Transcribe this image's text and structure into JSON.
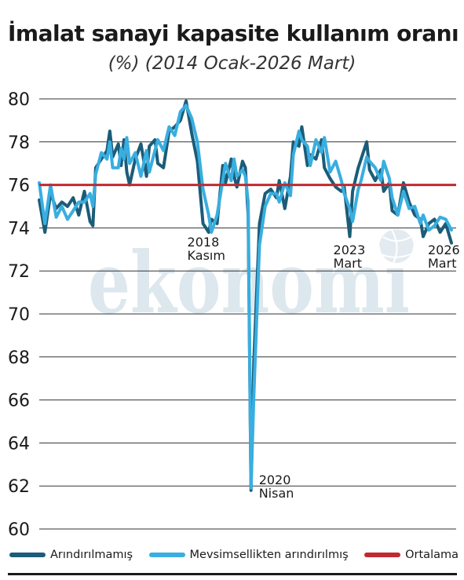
{
  "chart_data": {
    "type": "line",
    "title": "İmalat sanayi kapasite kullanım oranı",
    "subtitle": "(%) (2014 Ocak-2026 Mart)",
    "x_range": [
      "2014-01",
      "2026-03"
    ],
    "ylim": [
      60,
      80
    ],
    "yticks": [
      60,
      62,
      64,
      66,
      68,
      70,
      72,
      74,
      76,
      78,
      80
    ],
    "grid": true,
    "legend_position": "bottom",
    "reference_line": {
      "name": "Ortalama",
      "value": 76.0
    },
    "annotations": [
      {
        "label": [
          "2018",
          "Kasım"
        ],
        "date": "2018-11"
      },
      {
        "label": [
          "2020",
          "Nisan"
        ],
        "date": "2020-04"
      },
      {
        "label": [
          "2023",
          "Mart"
        ],
        "date": "2023-03"
      },
      {
        "label": [
          "2026",
          "Mart"
        ],
        "date": "2026-03"
      }
    ],
    "series": [
      {
        "name": "Arındırılmamış",
        "color": "#1b5c78",
        "points": [
          [
            "2014-01",
            75.3
          ],
          [
            "2014-03",
            73.8
          ],
          [
            "2014-05",
            75.6
          ],
          [
            "2014-07",
            74.9
          ],
          [
            "2014-09",
            75.2
          ],
          [
            "2014-11",
            75.0
          ],
          [
            "2015-01",
            75.4
          ],
          [
            "2015-03",
            74.6
          ],
          [
            "2015-05",
            75.7
          ],
          [
            "2015-07",
            74.3
          ],
          [
            "2015-08",
            74.1
          ],
          [
            "2015-09",
            76.8
          ],
          [
            "2015-11",
            77.2
          ],
          [
            "2016-01",
            77.6
          ],
          [
            "2016-02",
            78.5
          ],
          [
            "2016-03",
            77.3
          ],
          [
            "2016-05",
            77.9
          ],
          [
            "2016-06",
            76.9
          ],
          [
            "2016-07",
            78.1
          ],
          [
            "2016-08",
            76.6
          ],
          [
            "2016-09",
            76.0
          ],
          [
            "2016-11",
            77.2
          ],
          [
            "2017-01",
            77.9
          ],
          [
            "2017-03",
            76.4
          ],
          [
            "2017-04",
            77.8
          ],
          [
            "2017-06",
            78.1
          ],
          [
            "2017-07",
            77.0
          ],
          [
            "2017-09",
            76.8
          ],
          [
            "2017-11",
            78.5
          ],
          [
            "2018-01",
            78.7
          ],
          [
            "2018-03",
            79.0
          ],
          [
            "2018-05",
            79.9
          ],
          [
            "2018-07",
            78.4
          ],
          [
            "2018-09",
            77.1
          ],
          [
            "2018-11",
            74.2
          ],
          [
            "2019-01",
            73.8
          ],
          [
            "2019-02",
            74.4
          ],
          [
            "2019-04",
            74.2
          ],
          [
            "2019-06",
            76.9
          ],
          [
            "2019-07",
            76.1
          ],
          [
            "2019-09",
            77.2
          ],
          [
            "2019-10",
            76.4
          ],
          [
            "2019-11",
            75.9
          ],
          [
            "2020-01",
            77.1
          ],
          [
            "2020-02",
            76.8
          ],
          [
            "2020-03",
            74.6
          ],
          [
            "2020-04",
            61.8
          ],
          [
            "2020-05",
            67.8
          ],
          [
            "2020-07",
            74.2
          ],
          [
            "2020-09",
            75.6
          ],
          [
            "2020-11",
            75.8
          ],
          [
            "2021-01",
            75.4
          ],
          [
            "2021-02",
            76.2
          ],
          [
            "2021-04",
            74.9
          ],
          [
            "2021-06",
            76.4
          ],
          [
            "2021-07",
            78.0
          ],
          [
            "2021-09",
            77.8
          ],
          [
            "2021-10",
            78.7
          ],
          [
            "2021-12",
            76.9
          ],
          [
            "2022-01",
            77.4
          ],
          [
            "2022-03",
            77.2
          ],
          [
            "2022-05",
            78.1
          ],
          [
            "2022-06",
            76.8
          ],
          [
            "2022-08",
            76.3
          ],
          [
            "2022-10",
            75.9
          ],
          [
            "2022-12",
            75.7
          ],
          [
            "2023-01",
            75.9
          ],
          [
            "2023-03",
            73.6
          ],
          [
            "2023-04",
            75.7
          ],
          [
            "2023-06",
            76.8
          ],
          [
            "2023-07",
            77.2
          ],
          [
            "2023-09",
            78.0
          ],
          [
            "2023-10",
            76.7
          ],
          [
            "2023-12",
            76.2
          ],
          [
            "2024-02",
            76.7
          ],
          [
            "2024-03",
            75.7
          ],
          [
            "2024-05",
            76.1
          ],
          [
            "2024-06",
            74.8
          ],
          [
            "2024-08",
            74.6
          ],
          [
            "2024-10",
            76.1
          ],
          [
            "2024-12",
            75.2
          ],
          [
            "2025-02",
            74.6
          ],
          [
            "2025-04",
            74.4
          ],
          [
            "2025-05",
            73.6
          ],
          [
            "2025-07",
            74.2
          ],
          [
            "2025-09",
            74.4
          ],
          [
            "2025-11",
            73.8
          ],
          [
            "2026-01",
            74.2
          ],
          [
            "2026-03",
            73.3
          ]
        ]
      },
      {
        "name": "Mevsimsellikten arındırılmış",
        "color": "#39aee0",
        "points": [
          [
            "2014-01",
            76.1
          ],
          [
            "2014-03",
            74.2
          ],
          [
            "2014-05",
            76.0
          ],
          [
            "2014-07",
            74.5
          ],
          [
            "2014-09",
            75.0
          ],
          [
            "2014-11",
            74.4
          ],
          [
            "2015-01",
            74.8
          ],
          [
            "2015-03",
            75.2
          ],
          [
            "2015-05",
            75.2
          ],
          [
            "2015-07",
            75.6
          ],
          [
            "2015-08",
            75.0
          ],
          [
            "2015-09",
            76.5
          ],
          [
            "2015-11",
            77.5
          ],
          [
            "2016-01",
            77.2
          ],
          [
            "2016-02",
            78.0
          ],
          [
            "2016-03",
            76.8
          ],
          [
            "2016-05",
            76.8
          ],
          [
            "2016-06",
            77.7
          ],
          [
            "2016-07",
            77.2
          ],
          [
            "2016-08",
            78.2
          ],
          [
            "2016-09",
            77.0
          ],
          [
            "2016-11",
            77.5
          ],
          [
            "2017-01",
            76.4
          ],
          [
            "2017-03",
            77.6
          ],
          [
            "2017-04",
            76.6
          ],
          [
            "2017-06",
            77.6
          ],
          [
            "2017-07",
            78.1
          ],
          [
            "2017-09",
            77.6
          ],
          [
            "2017-11",
            78.7
          ],
          [
            "2018-01",
            78.3
          ],
          [
            "2018-03",
            79.4
          ],
          [
            "2018-05",
            79.7
          ],
          [
            "2018-07",
            79.1
          ],
          [
            "2018-09",
            78.0
          ],
          [
            "2018-11",
            75.8
          ],
          [
            "2019-01",
            74.6
          ],
          [
            "2019-02",
            73.8
          ],
          [
            "2019-04",
            74.6
          ],
          [
            "2019-06",
            76.2
          ],
          [
            "2019-07",
            77.0
          ],
          [
            "2019-09",
            76.2
          ],
          [
            "2019-10",
            77.2
          ],
          [
            "2019-11",
            76.4
          ],
          [
            "2020-01",
            76.7
          ],
          [
            "2020-02",
            76.4
          ],
          [
            "2020-03",
            75.2
          ],
          [
            "2020-04",
            61.9
          ],
          [
            "2020-05",
            66.2
          ],
          [
            "2020-07",
            73.2
          ],
          [
            "2020-09",
            75.0
          ],
          [
            "2020-11",
            75.6
          ],
          [
            "2021-01",
            75.6
          ],
          [
            "2021-02",
            75.2
          ],
          [
            "2021-04",
            76.1
          ],
          [
            "2021-06",
            75.5
          ],
          [
            "2021-07",
            77.4
          ],
          [
            "2021-09",
            78.5
          ],
          [
            "2021-10",
            78.1
          ],
          [
            "2021-12",
            77.8
          ],
          [
            "2022-01",
            76.9
          ],
          [
            "2022-03",
            78.1
          ],
          [
            "2022-05",
            77.5
          ],
          [
            "2022-06",
            78.2
          ],
          [
            "2022-08",
            76.6
          ],
          [
            "2022-10",
            77.1
          ],
          [
            "2022-12",
            76.2
          ],
          [
            "2023-01",
            75.6
          ],
          [
            "2023-03",
            74.9
          ],
          [
            "2023-04",
            74.3
          ],
          [
            "2023-06",
            75.8
          ],
          [
            "2023-07",
            76.2
          ],
          [
            "2023-09",
            77.3
          ],
          [
            "2023-10",
            77.1
          ],
          [
            "2023-12",
            76.8
          ],
          [
            "2024-02",
            76.2
          ],
          [
            "2024-03",
            77.1
          ],
          [
            "2024-05",
            76.3
          ],
          [
            "2024-06",
            75.4
          ],
          [
            "2024-08",
            74.6
          ],
          [
            "2024-10",
            75.7
          ],
          [
            "2024-12",
            74.9
          ],
          [
            "2025-02",
            75.0
          ],
          [
            "2025-04",
            74.2
          ],
          [
            "2025-05",
            74.6
          ],
          [
            "2025-07",
            73.9
          ],
          [
            "2025-09",
            74.1
          ],
          [
            "2025-11",
            74.5
          ],
          [
            "2026-01",
            74.4
          ],
          [
            "2026-03",
            73.9
          ]
        ]
      }
    ]
  },
  "legend": {
    "unadjusted": "Arındırılmamış",
    "seasonal": "Mevsimsellikten arındırılmış",
    "average": "Ortalama",
    "average_color": "#c0292f"
  },
  "watermark": "ekonomi"
}
